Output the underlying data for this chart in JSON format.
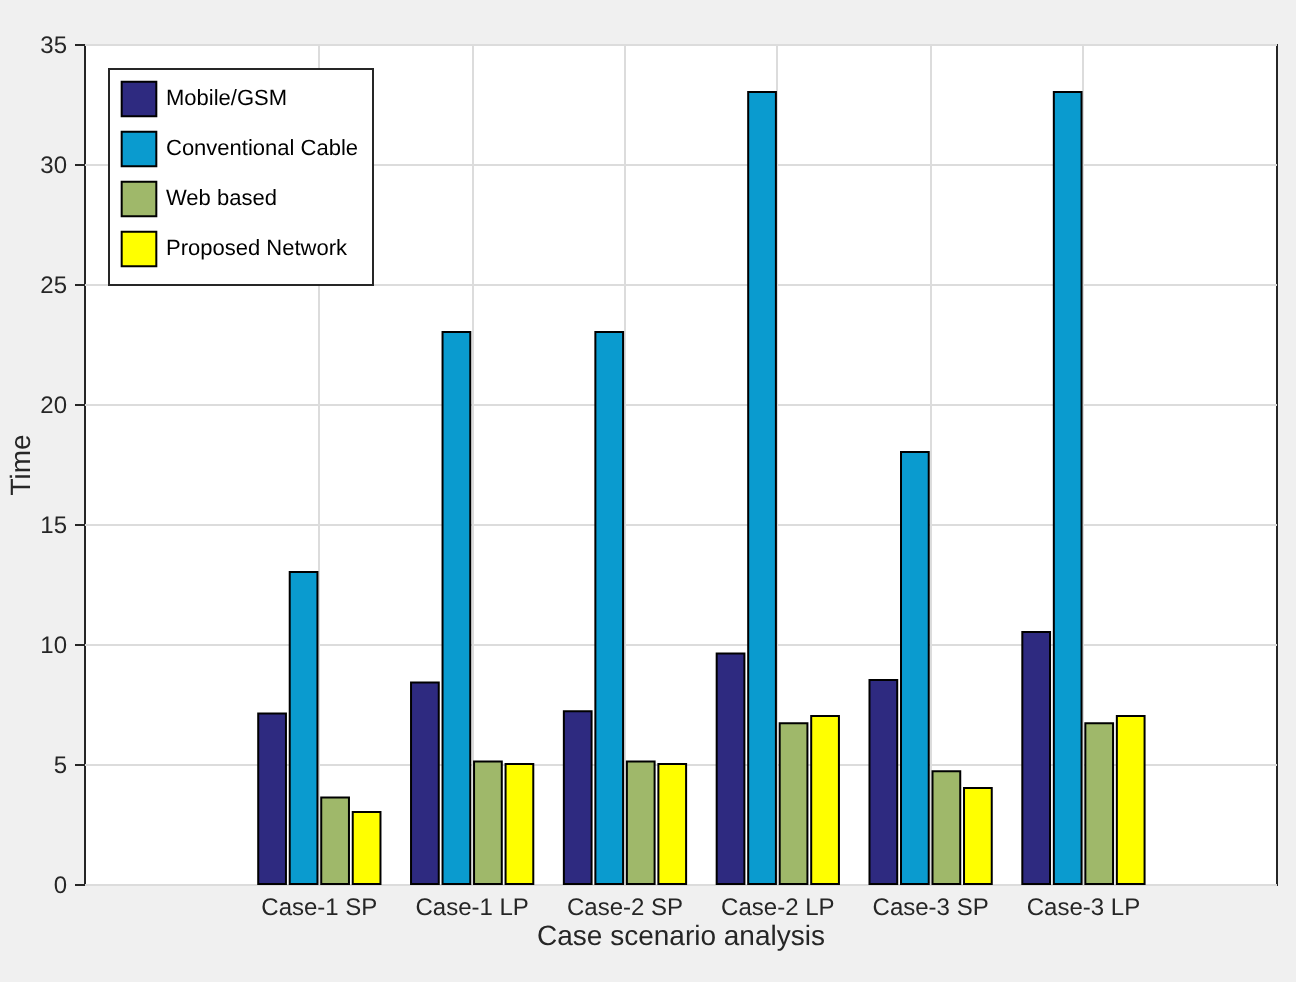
{
  "chart_data": {
    "type": "bar",
    "xlabel": "Case scenario analysis",
    "ylabel": "Time",
    "categories": [
      "Case-1 SP",
      "Case-1 LP",
      "Case-2 SP",
      "Case-2 LP",
      "Case-3 SP",
      "Case-3 LP"
    ],
    "series": [
      {
        "name": "Mobile/GSM",
        "color": "#2e2a80",
        "values": [
          7.1,
          8.4,
          7.2,
          9.6,
          8.5,
          10.5
        ]
      },
      {
        "name": "Conventional Cable",
        "color": "#0a9bcf",
        "values": [
          13,
          23,
          23,
          33,
          18,
          33
        ]
      },
      {
        "name": "Web based",
        "color": "#9fb86a",
        "values": [
          3.6,
          5.1,
          5.1,
          6.7,
          4.7,
          6.7
        ]
      },
      {
        "name": "Proposed Network",
        "color": "#ffff00",
        "values": [
          3.0,
          5.0,
          5.0,
          7.0,
          4.0,
          7.0
        ]
      }
    ],
    "ylim": [
      0,
      35
    ],
    "yticks": [
      0,
      5,
      10,
      15,
      20,
      25,
      30,
      35
    ],
    "grid": true,
    "legend": "top left"
  }
}
